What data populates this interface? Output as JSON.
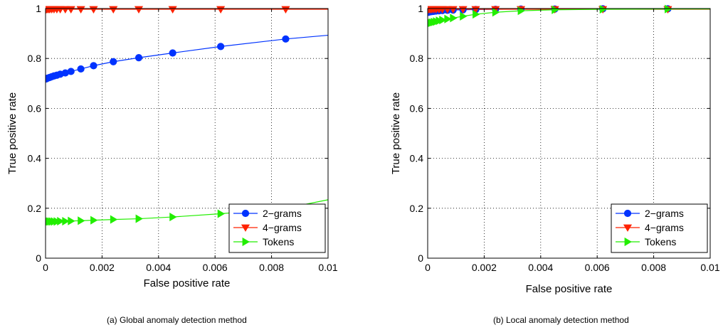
{
  "chart_data": [
    {
      "type": "line",
      "caption": "(a) Global anomaly detection method",
      "xlabel": "False positive rate",
      "ylabel": "True positive rate",
      "xlim": [
        0,
        0.01
      ],
      "ylim": [
        0,
        1
      ],
      "xticks": [
        "0",
        "0.002",
        "0.004",
        "0.006",
        "0.008",
        "0.01"
      ],
      "yticks": [
        "0",
        "0.2",
        "0.4",
        "0.6",
        "0.8",
        "1"
      ],
      "grid": true,
      "legend_position": "bottom-right",
      "series": [
        {
          "name": "2−grams",
          "color": "#0033ff",
          "marker": "circle",
          "points": [
            [
              2e-05,
              0.718
            ],
            [
              5e-05,
              0.72
            ],
            [
              0.0001,
              0.722
            ],
            [
              0.00015,
              0.724
            ],
            [
              0.00022,
              0.727
            ],
            [
              0.0003,
              0.73
            ],
            [
              0.0004,
              0.733
            ],
            [
              0.00052,
              0.737
            ],
            [
              0.0007,
              0.742
            ],
            [
              0.0009,
              0.748
            ],
            [
              0.00125,
              0.758
            ],
            [
              0.0017,
              0.771
            ],
            [
              0.0024,
              0.787
            ],
            [
              0.0033,
              0.803
            ],
            [
              0.0045,
              0.822
            ],
            [
              0.0062,
              0.848
            ],
            [
              0.0085,
              0.878
            ],
            [
              0.01,
              0.893
            ]
          ]
        },
        {
          "name": "4−grams",
          "color": "#ff2200",
          "marker": "triangle-down",
          "points": [
            [
              2e-05,
              0.997
            ],
            [
              5e-05,
              0.997
            ],
            [
              0.0001,
              0.997
            ],
            [
              0.00015,
              0.997
            ],
            [
              0.00022,
              0.997
            ],
            [
              0.0003,
              0.997
            ],
            [
              0.0004,
              0.997
            ],
            [
              0.00052,
              0.997
            ],
            [
              0.0007,
              0.997
            ],
            [
              0.0009,
              0.997
            ],
            [
              0.00125,
              0.997
            ],
            [
              0.0017,
              0.997
            ],
            [
              0.0024,
              0.997
            ],
            [
              0.0033,
              0.997
            ],
            [
              0.0045,
              0.997
            ],
            [
              0.0062,
              0.997
            ],
            [
              0.0085,
              0.997
            ],
            [
              0.01,
              0.997
            ]
          ]
        },
        {
          "name": "Tokens",
          "color": "#22ee00",
          "marker": "triangle-right",
          "points": [
            [
              2e-05,
              0.147
            ],
            [
              5e-05,
              0.147
            ],
            [
              0.0001,
              0.147
            ],
            [
              0.00015,
              0.147
            ],
            [
              0.00022,
              0.147
            ],
            [
              0.0003,
              0.147
            ],
            [
              0.0004,
              0.147
            ],
            [
              0.00052,
              0.148
            ],
            [
              0.0007,
              0.148
            ],
            [
              0.0009,
              0.149
            ],
            [
              0.00125,
              0.15
            ],
            [
              0.0017,
              0.152
            ],
            [
              0.0024,
              0.155
            ],
            [
              0.0033,
              0.158
            ],
            [
              0.0045,
              0.165
            ],
            [
              0.0062,
              0.178
            ],
            [
              0.0085,
              0.2
            ],
            [
              0.01,
              0.234
            ]
          ]
        }
      ]
    },
    {
      "type": "line",
      "caption": "(b) Local anomaly detection method",
      "xlabel": "False positive rate",
      "ylabel": "True positive rate",
      "xlim": [
        0,
        0.01
      ],
      "ylim": [
        0,
        1
      ],
      "xticks": [
        "0",
        "0.002",
        "0.004",
        "0.006",
        "0.008",
        "0.01"
      ],
      "yticks": [
        "0",
        "0.2",
        "0.4",
        "0.6",
        "0.8",
        "1"
      ],
      "grid": true,
      "legend_position": "bottom-right",
      "series": [
        {
          "name": "2−grams",
          "color": "#0033ff",
          "marker": "circle",
          "points": [
            [
              2e-05,
              0.985
            ],
            [
              5e-05,
              0.986
            ],
            [
              0.0001,
              0.987
            ],
            [
              0.00015,
              0.988
            ],
            [
              0.00022,
              0.989
            ],
            [
              0.0003,
              0.99
            ],
            [
              0.0004,
              0.991
            ],
            [
              0.00052,
              0.992
            ],
            [
              0.0007,
              0.993
            ],
            [
              0.0009,
              0.994
            ],
            [
              0.00125,
              0.995
            ],
            [
              0.0017,
              0.996
            ],
            [
              0.0024,
              0.997
            ],
            [
              0.0033,
              0.998
            ],
            [
              0.0045,
              0.998
            ],
            [
              0.0062,
              0.999
            ],
            [
              0.0085,
              0.999
            ],
            [
              0.01,
              0.999
            ]
          ]
        },
        {
          "name": "4−grams",
          "color": "#ff2200",
          "marker": "triangle-down",
          "points": [
            [
              2e-05,
              0.997
            ],
            [
              5e-05,
              0.997
            ],
            [
              0.0001,
              0.997
            ],
            [
              0.00015,
              0.997
            ],
            [
              0.00022,
              0.997
            ],
            [
              0.0003,
              0.997
            ],
            [
              0.0004,
              0.997
            ],
            [
              0.00052,
              0.997
            ],
            [
              0.0007,
              0.997
            ],
            [
              0.0009,
              0.997
            ],
            [
              0.00125,
              0.997
            ],
            [
              0.0017,
              0.997
            ],
            [
              0.0024,
              0.997
            ],
            [
              0.0033,
              0.997
            ],
            [
              0.0045,
              0.997
            ],
            [
              0.0062,
              0.997
            ],
            [
              0.0085,
              0.997
            ],
            [
              0.01,
              0.997
            ]
          ]
        },
        {
          "name": "Tokens",
          "color": "#22ee00",
          "marker": "triangle-right",
          "points": [
            [
              2e-05,
              0.94
            ],
            [
              5e-05,
              0.941
            ],
            [
              0.0001,
              0.942
            ],
            [
              0.00015,
              0.944
            ],
            [
              0.00022,
              0.946
            ],
            [
              0.0003,
              0.948
            ],
            [
              0.0004,
              0.951
            ],
            [
              0.00052,
              0.954
            ],
            [
              0.0007,
              0.958
            ],
            [
              0.0009,
              0.962
            ],
            [
              0.00125,
              0.969
            ],
            [
              0.0017,
              0.977
            ],
            [
              0.0024,
              0.985
            ],
            [
              0.0033,
              0.991
            ],
            [
              0.0045,
              0.995
            ],
            [
              0.0062,
              0.997
            ],
            [
              0.0085,
              0.998
            ],
            [
              0.01,
              0.998
            ]
          ]
        }
      ]
    }
  ]
}
